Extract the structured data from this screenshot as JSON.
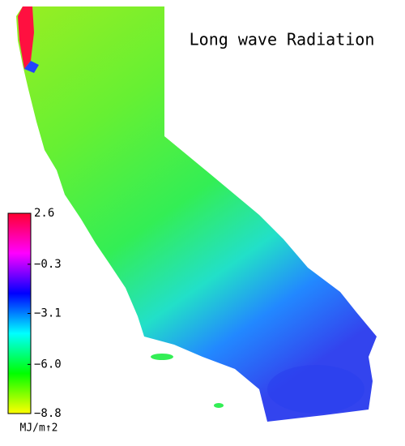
{
  "chart_data": {
    "type": "colormap",
    "title": "Long wave Radiation",
    "colorbar": {
      "label": "MJ/m↑2",
      "lim": [
        -8.8,
        2.6
      ],
      "ticks": [
        -8.8,
        -6.0,
        -3.1,
        -0.3,
        2.6
      ],
      "tick_labels": [
        "−8.8",
        "−6.0",
        "−3.1",
        "−0.3",
        "2.6"
      ],
      "colors": [
        "#ffff00",
        "#00ff00",
        "#00ffff",
        "#0000ff",
        "#ff00ff",
        "#ff0030"
      ]
    }
  }
}
